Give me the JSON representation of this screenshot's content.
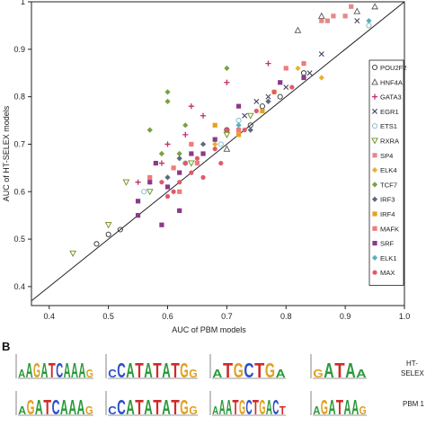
{
  "panel_b_label": "B",
  "chart_data": {
    "type": "scatter",
    "xlabel": "AUC of PBM models",
    "ylabel": "AUC of HT-SELEX models",
    "xlim": [
      0.37,
      1.0
    ],
    "ylim": [
      0.36,
      1.0
    ],
    "xticks": [
      "0.4",
      "0.5",
      "0.6",
      "0.7",
      "0.8",
      "0.9",
      "1.0"
    ],
    "yticks": [
      "0.4",
      "0.5",
      "0.6",
      "0.7",
      "0.8",
      "0.9",
      "1"
    ],
    "diagonal": true,
    "legend_position": "right",
    "series": [
      {
        "name": "POU2F2",
        "color": "#333333",
        "marker": "circle-open",
        "points": [
          [
            0.48,
            0.49
          ],
          [
            0.5,
            0.51
          ],
          [
            0.52,
            0.52
          ],
          [
            0.79,
            0.8
          ],
          [
            0.83,
            0.85
          ],
          [
            0.7,
            0.73
          ],
          [
            0.74,
            0.74
          ],
          [
            0.76,
            0.78
          ]
        ]
      },
      {
        "name": "HNF4A",
        "color": "#555555",
        "marker": "triangle-open",
        "points": [
          [
            0.82,
            0.94
          ],
          [
            0.86,
            0.97
          ],
          [
            0.92,
            0.98
          ],
          [
            0.95,
            0.99
          ],
          [
            0.7,
            0.69
          ]
        ]
      },
      {
        "name": "GATA3",
        "color": "#c0306a",
        "marker": "plus",
        "points": [
          [
            0.7,
            0.83
          ],
          [
            0.77,
            0.87
          ],
          [
            0.64,
            0.78
          ],
          [
            0.66,
            0.76
          ],
          [
            0.6,
            0.7
          ],
          [
            0.63,
            0.72
          ],
          [
            0.55,
            0.62
          ],
          [
            0.59,
            0.66
          ]
        ]
      },
      {
        "name": "EGR1",
        "color": "#444466",
        "marker": "x",
        "points": [
          [
            0.77,
            0.8
          ],
          [
            0.8,
            0.82
          ],
          [
            0.84,
            0.85
          ],
          [
            0.86,
            0.89
          ],
          [
            0.92,
            0.96
          ],
          [
            0.73,
            0.76
          ],
          [
            0.75,
            0.79
          ]
        ]
      },
      {
        "name": "ETS1",
        "color": "#7fb8c8",
        "marker": "circle-open",
        "points": [
          [
            0.56,
            0.6
          ],
          [
            0.63,
            0.66
          ],
          [
            0.69,
            0.7
          ],
          [
            0.72,
            0.75
          ],
          [
            0.94,
            0.95
          ]
        ]
      },
      {
        "name": "RXRA",
        "color": "#6a8f1a",
        "marker": "triangle-down-open",
        "points": [
          [
            0.44,
            0.47
          ],
          [
            0.5,
            0.53
          ],
          [
            0.53,
            0.62
          ],
          [
            0.57,
            0.6
          ],
          [
            0.64,
            0.66
          ],
          [
            0.7,
            0.72
          ],
          [
            0.74,
            0.76
          ]
        ]
      },
      {
        "name": "SP4",
        "color": "#e28a8a",
        "marker": "square",
        "points": [
          [
            0.86,
            0.96
          ],
          [
            0.87,
            0.96
          ],
          [
            0.9,
            0.97
          ],
          [
            0.91,
            0.99
          ],
          [
            0.88,
            0.97
          ]
        ]
      },
      {
        "name": "ELK4",
        "color": "#e8b030",
        "marker": "diamond",
        "points": [
          [
            0.86,
            0.84
          ],
          [
            0.82,
            0.86
          ],
          [
            0.68,
            0.7
          ]
        ]
      },
      {
        "name": "TCF7",
        "color": "#7aa040",
        "marker": "diamond",
        "points": [
          [
            0.6,
            0.81
          ],
          [
            0.7,
            0.86
          ],
          [
            0.63,
            0.74
          ],
          [
            0.59,
            0.68
          ],
          [
            0.62,
            0.68
          ],
          [
            0.57,
            0.73
          ],
          [
            0.6,
            0.79
          ]
        ]
      },
      {
        "name": "IRF3",
        "color": "#5a6a7a",
        "marker": "diamond",
        "points": [
          [
            0.74,
            0.73
          ],
          [
            0.77,
            0.79
          ],
          [
            0.66,
            0.7
          ],
          [
            0.62,
            0.67
          ],
          [
            0.6,
            0.63
          ]
        ]
      },
      {
        "name": "IRF4",
        "color": "#e8a020",
        "marker": "square",
        "points": [
          [
            0.78,
            0.81
          ],
          [
            0.76,
            0.77
          ],
          [
            0.72,
            0.72
          ],
          [
            0.68,
            0.74
          ]
        ]
      },
      {
        "name": "MAFK",
        "color": "#f07a7a",
        "marker": "square",
        "points": [
          [
            0.83,
            0.87
          ],
          [
            0.8,
            0.86
          ],
          [
            0.72,
            0.73
          ],
          [
            0.64,
            0.7
          ],
          [
            0.61,
            0.65
          ],
          [
            0.57,
            0.63
          ],
          [
            0.65,
            0.66
          ],
          [
            0.62,
            0.6
          ]
        ]
      },
      {
        "name": "SRF",
        "color": "#8a3a8a",
        "marker": "square",
        "points": [
          [
            0.55,
            0.58
          ],
          [
            0.57,
            0.62
          ],
          [
            0.6,
            0.61
          ],
          [
            0.62,
            0.64
          ],
          [
            0.64,
            0.68
          ],
          [
            0.68,
            0.71
          ],
          [
            0.58,
            0.66
          ],
          [
            0.66,
            0.68
          ],
          [
            0.72,
            0.78
          ],
          [
            0.79,
            0.83
          ],
          [
            0.83,
            0.84
          ],
          [
            0.62,
            0.56
          ],
          [
            0.59,
            0.53
          ],
          [
            0.55,
            0.55
          ]
        ]
      },
      {
        "name": "ELK1",
        "color": "#5ab0c0",
        "marker": "diamond",
        "points": [
          [
            0.94,
            0.96
          ],
          [
            0.72,
            0.74
          ]
        ]
      },
      {
        "name": "MAX",
        "color": "#e05a6a",
        "marker": "circle",
        "points": [
          [
            0.6,
            0.59
          ],
          [
            0.62,
            0.62
          ],
          [
            0.64,
            0.64
          ],
          [
            0.65,
            0.67
          ],
          [
            0.68,
            0.69
          ],
          [
            0.7,
            0.73
          ],
          [
            0.73,
            0.73
          ],
          [
            0.75,
            0.77
          ],
          [
            0.78,
            0.81
          ],
          [
            0.81,
            0.82
          ],
          [
            0.61,
            0.6
          ],
          [
            0.66,
            0.63
          ],
          [
            0.63,
            0.66
          ],
          [
            0.69,
            0.66
          ],
          [
            0.59,
            0.62
          ]
        ]
      }
    ]
  },
  "logos": {
    "row_labels": [
      "HT-\nSELEX",
      "PBM 1"
    ],
    "ht_selex": [
      "AAGATCAAAG",
      "CCATATATGG",
      "ATGCTGA",
      "GATAA"
    ],
    "pbm": [
      "AGATCAAAG",
      "CCATATATGG",
      "AAATGCTGACT",
      "AGATAAG"
    ]
  }
}
